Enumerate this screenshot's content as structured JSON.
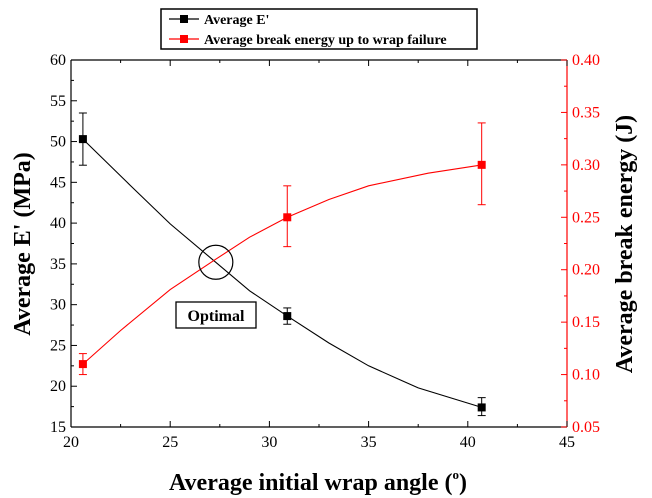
{
  "chart_data": {
    "type": "line",
    "x": [
      20.6,
      30.9,
      40.7
    ],
    "xlim": [
      20,
      45
    ],
    "xticks": [
      20,
      25,
      30,
      35,
      40,
      45
    ],
    "xticks_labels": [
      "20",
      "25",
      "30",
      "35",
      "40",
      "45"
    ],
    "xlabel": "Average initial wrap angle (",
    "xlabel_sup": "o",
    "xlabel_close": ")",
    "y_left": {
      "label": "Average E' (MPa)",
      "lim": [
        15,
        60
      ],
      "ticks": [
        15,
        20,
        25,
        30,
        35,
        40,
        45,
        50,
        55,
        60
      ],
      "tick_labels": [
        "15",
        "20",
        "25",
        "30",
        "35",
        "40",
        "45",
        "50",
        "55",
        "60"
      ],
      "color": "#000000"
    },
    "y_right": {
      "label": "Average break energy (J)",
      "lim": [
        0.05,
        0.4
      ],
      "ticks": [
        0.05,
        0.1,
        0.15,
        0.2,
        0.25,
        0.3,
        0.35,
        0.4
      ],
      "tick_labels": [
        "0.05",
        "0.10",
        "0.15",
        "0.20",
        "0.25",
        "0.30",
        "0.35",
        "0.40"
      ],
      "color": "#ff0000"
    },
    "series": [
      {
        "name": "Average E'",
        "axis": "left",
        "color": "#000000",
        "values": [
          50.3,
          28.6,
          17.4
        ],
        "err_low": [
          47.1,
          27.6,
          16.4
        ],
        "err_high": [
          53.5,
          29.6,
          18.6
        ],
        "curve": [
          [
            20.6,
            50.3
          ],
          [
            23,
            44.6
          ],
          [
            25,
            39.9
          ],
          [
            27.3,
            35.2
          ],
          [
            29,
            31.7
          ],
          [
            30.9,
            28.6
          ],
          [
            33,
            25.3
          ],
          [
            35,
            22.5
          ],
          [
            37.5,
            19.8
          ],
          [
            40.7,
            17.4
          ]
        ]
      },
      {
        "name": "Average break energy up to wrap failure",
        "axis": "right",
        "color": "#ff0000",
        "values": [
          0.11,
          0.25,
          0.3
        ],
        "err_low": [
          0.1,
          0.222,
          0.262
        ],
        "err_high": [
          0.12,
          0.28,
          0.34
        ],
        "curve": [
          [
            20.6,
            0.11
          ],
          [
            22.5,
            0.142
          ],
          [
            25,
            0.181
          ],
          [
            27.3,
            0.21
          ],
          [
            29,
            0.231
          ],
          [
            30.9,
            0.25
          ],
          [
            33,
            0.267
          ],
          [
            35,
            0.28
          ],
          [
            38,
            0.292
          ],
          [
            40.7,
            0.3
          ]
        ]
      }
    ],
    "annotation": {
      "text": "Optimal",
      "circle_center": [
        27.3,
        35.2
      ]
    },
    "legend": "top-center",
    "grid": false
  }
}
